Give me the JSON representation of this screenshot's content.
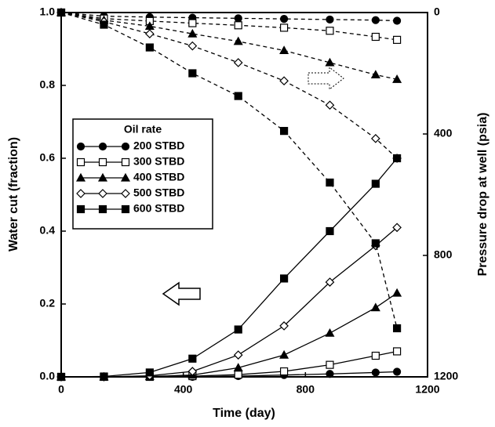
{
  "chart_data": {
    "type": "line",
    "x_label": "Time (day)",
    "y_label": "Water cut (fraction)",
    "y2_label": "Pressure drop at well (psia)",
    "legend_title": "Oil rate",
    "legend_position": "center-left",
    "x": [
      0,
      140,
      290,
      430,
      580,
      730,
      880,
      1030,
      1100
    ],
    "xlim": [
      0,
      1200
    ],
    "xticks": [
      0,
      400,
      800,
      1200
    ],
    "ylim": [
      0,
      1
    ],
    "yticks": [
      {
        "value": 0,
        "label": "0.0"
      },
      {
        "value": 0.2,
        "label": "0.2"
      },
      {
        "value": 0.4,
        "label": "0.4"
      },
      {
        "value": 0.6,
        "label": "0.6"
      },
      {
        "value": 0.8,
        "label": "0.8"
      },
      {
        "value": 1,
        "label": "1.0"
      }
    ],
    "y2lim": [
      1200,
      0
    ],
    "y2ticks": [
      0,
      400,
      800,
      1200
    ],
    "series": [
      {
        "name": "200 STBD",
        "color": "#000000",
        "marker": "circle",
        "filled": true,
        "values": [
          0,
          0,
          0,
          0,
          0.002,
          0.005,
          0.008,
          0.012,
          0.014
        ],
        "y2_values": [
          0,
          12,
          15,
          17,
          19,
          21,
          23,
          25,
          27
        ]
      },
      {
        "name": "300 STBD",
        "color": "#000000",
        "marker": "square",
        "filled": false,
        "values": [
          0,
          0,
          0,
          0.002,
          0.006,
          0.015,
          0.033,
          0.058,
          0.07
        ],
        "y2_values": [
          0,
          20,
          28,
          35,
          42,
          50,
          60,
          80,
          90
        ]
      },
      {
        "name": "400 STBD",
        "color": "#000000",
        "marker": "triangle",
        "filled": true,
        "values": [
          0,
          0,
          0.001,
          0.005,
          0.025,
          0.06,
          0.12,
          0.19,
          0.23
        ],
        "y2_values": [
          0,
          25,
          45,
          70,
          95,
          125,
          165,
          205,
          220
        ]
      },
      {
        "name": "500 STBD",
        "color": "#000000",
        "marker": "diamond",
        "filled": false,
        "values": [
          0,
          0,
          0.003,
          0.015,
          0.06,
          0.14,
          0.26,
          0.36,
          0.41
        ],
        "y2_values": [
          0,
          30,
          70,
          110,
          165,
          225,
          305,
          415,
          480
        ]
      },
      {
        "name": "600 STBD",
        "color": "#000000",
        "marker": "square",
        "filled": true,
        "values": [
          0,
          0.001,
          0.012,
          0.05,
          0.13,
          0.27,
          0.4,
          0.53,
          0.6
        ],
        "y2_values": [
          0,
          40,
          115,
          200,
          275,
          390,
          560,
          760,
          1040
        ]
      }
    ]
  }
}
